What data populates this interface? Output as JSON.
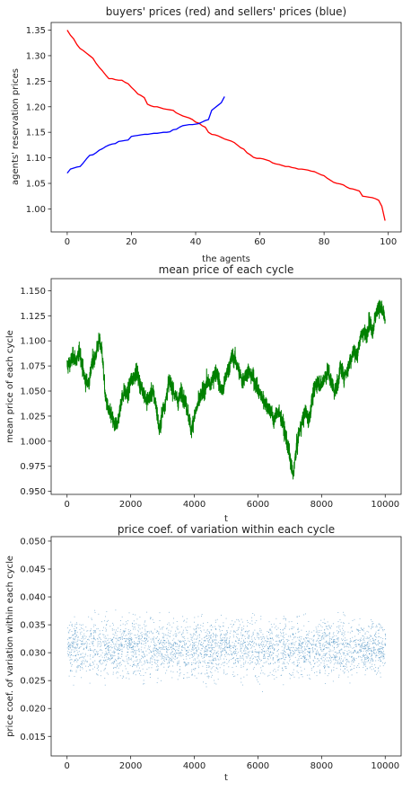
{
  "chart_data": [
    {
      "type": "line",
      "title": "buyers' prices (red) and sellers' prices (blue)",
      "xlabel": "the agents",
      "ylabel": "agents' reservation prices",
      "xlim": [
        -5,
        104
      ],
      "ylim": [
        0.955,
        1.365
      ],
      "xticks": [
        0,
        20,
        40,
        60,
        80,
        100
      ],
      "yticks": [
        1.0,
        1.05,
        1.1,
        1.15,
        1.2,
        1.25,
        1.3,
        1.35
      ],
      "ytick_decimals": 2,
      "grid": false,
      "series": [
        {
          "color": "#ff0000",
          "x": [
            0,
            1,
            2,
            3,
            4,
            5,
            6,
            7,
            8,
            9,
            10,
            11,
            12,
            13,
            14,
            15,
            16,
            17,
            18,
            19,
            20,
            21,
            22,
            23,
            24,
            25,
            26,
            27,
            28,
            29,
            30,
            31,
            32,
            33,
            34,
            35,
            36,
            37,
            38,
            39,
            40,
            41,
            42,
            43,
            44,
            45,
            46,
            47,
            48,
            49,
            50,
            51,
            52,
            53,
            54,
            55,
            56,
            57,
            58,
            59,
            60,
            61,
            62,
            63,
            64,
            65,
            66,
            67,
            68,
            69,
            70,
            71,
            72,
            73,
            74,
            75,
            76,
            77,
            78,
            79,
            80,
            81,
            82,
            83,
            84,
            85,
            86,
            87,
            88,
            89,
            90,
            91,
            92,
            93,
            94,
            95,
            96,
            97,
            98,
            99
          ],
          "values": [
            1.35,
            1.34,
            1.333,
            1.322,
            1.314,
            1.31,
            1.305,
            1.3,
            1.295,
            1.285,
            1.277,
            1.27,
            1.262,
            1.255,
            1.255,
            1.253,
            1.252,
            1.252,
            1.248,
            1.245,
            1.238,
            1.232,
            1.225,
            1.222,
            1.218,
            1.205,
            1.202,
            1.2,
            1.2,
            1.198,
            1.196,
            1.195,
            1.194,
            1.193,
            1.188,
            1.185,
            1.182,
            1.18,
            1.178,
            1.175,
            1.17,
            1.168,
            1.163,
            1.16,
            1.15,
            1.146,
            1.145,
            1.143,
            1.14,
            1.137,
            1.135,
            1.133,
            1.13,
            1.125,
            1.12,
            1.117,
            1.11,
            1.106,
            1.101,
            1.099,
            1.099,
            1.098,
            1.096,
            1.094,
            1.09,
            1.088,
            1.087,
            1.085,
            1.083,
            1.083,
            1.081,
            1.08,
            1.078,
            1.078,
            1.077,
            1.076,
            1.074,
            1.073,
            1.07,
            1.067,
            1.065,
            1.06,
            1.056,
            1.052,
            1.05,
            1.049,
            1.047,
            1.043,
            1.04,
            1.039,
            1.037,
            1.035,
            1.025,
            1.024,
            1.023,
            1.022,
            1.02,
            1.017,
            1.005,
            0.977
          ]
        },
        {
          "color": "#0000ff",
          "x": [
            0,
            1,
            2,
            3,
            4,
            5,
            6,
            7,
            8,
            9,
            10,
            11,
            12,
            13,
            14,
            15,
            16,
            17,
            18,
            19,
            20,
            21,
            22,
            23,
            24,
            25,
            26,
            27,
            28,
            29,
            30,
            31,
            32,
            33,
            34,
            35,
            36,
            37,
            38,
            39,
            40,
            41,
            42,
            43,
            44,
            45,
            46,
            47,
            48,
            49
          ],
          "values": [
            1.07,
            1.078,
            1.08,
            1.082,
            1.083,
            1.09,
            1.098,
            1.105,
            1.106,
            1.11,
            1.115,
            1.118,
            1.122,
            1.125,
            1.127,
            1.128,
            1.132,
            1.133,
            1.134,
            1.135,
            1.142,
            1.143,
            1.144,
            1.145,
            1.146,
            1.146,
            1.147,
            1.148,
            1.148,
            1.149,
            1.15,
            1.15,
            1.151,
            1.155,
            1.156,
            1.16,
            1.163,
            1.164,
            1.165,
            1.165,
            1.166,
            1.167,
            1.17,
            1.173,
            1.175,
            1.193,
            1.198,
            1.203,
            1.208,
            1.22
          ]
        }
      ]
    },
    {
      "type": "line",
      "title": "mean price of each cycle",
      "xlabel": "t",
      "ylabel": "mean price of each cycle",
      "xlim": [
        -500,
        10500
      ],
      "ylim": [
        0.947,
        1.162
      ],
      "xticks": [
        0,
        2000,
        4000,
        6000,
        8000,
        10000
      ],
      "yticks": [
        0.95,
        0.975,
        1.0,
        1.025,
        1.05,
        1.075,
        1.1,
        1.125,
        1.15
      ],
      "ytick_decimals": 3,
      "grid": false,
      "series": [
        {
          "color": "#008000",
          "x": [
            0,
            100,
            200,
            300,
            400,
            500,
            600,
            700,
            800,
            900,
            1000,
            1100,
            1200,
            1300,
            1400,
            1500,
            1600,
            1700,
            1800,
            1900,
            2000,
            2100,
            2200,
            2300,
            2400,
            2500,
            2600,
            2700,
            2800,
            2900,
            3000,
            3100,
            3200,
            3300,
            3400,
            3500,
            3600,
            3700,
            3800,
            3900,
            4000,
            4100,
            4200,
            4300,
            4400,
            4500,
            4600,
            4700,
            4800,
            4900,
            5000,
            5100,
            5200,
            5300,
            5400,
            5500,
            5600,
            5700,
            5800,
            5900,
            6000,
            6100,
            6200,
            6300,
            6400,
            6500,
            6600,
            6700,
            6800,
            6900,
            7000,
            7100,
            7200,
            7300,
            7400,
            7500,
            7600,
            7700,
            7800,
            7900,
            8000,
            8100,
            8200,
            8300,
            8400,
            8500,
            8600,
            8700,
            8800,
            8900,
            9000,
            9100,
            9200,
            9300,
            9400,
            9500,
            9600,
            9700,
            9800,
            9900,
            10000
          ],
          "values": [
            1.075,
            1.078,
            1.085,
            1.08,
            1.09,
            1.07,
            1.058,
            1.06,
            1.08,
            1.085,
            1.1,
            1.09,
            1.045,
            1.03,
            1.025,
            1.015,
            1.02,
            1.04,
            1.05,
            1.045,
            1.06,
            1.065,
            1.07,
            1.055,
            1.05,
            1.04,
            1.045,
            1.05,
            1.035,
            1.01,
            1.03,
            1.04,
            1.06,
            1.055,
            1.045,
            1.04,
            1.05,
            1.04,
            1.03,
            1.01,
            1.025,
            1.035,
            1.045,
            1.05,
            1.06,
            1.055,
            1.065,
            1.07,
            1.055,
            1.05,
            1.065,
            1.075,
            1.085,
            1.08,
            1.07,
            1.06,
            1.065,
            1.07,
            1.065,
            1.06,
            1.05,
            1.045,
            1.04,
            1.035,
            1.03,
            1.02,
            1.03,
            1.025,
            1.015,
            1.0,
            0.985,
            0.965,
            0.99,
            1.01,
            1.02,
            1.03,
            1.02,
            1.04,
            1.055,
            1.06,
            1.055,
            1.065,
            1.07,
            1.06,
            1.05,
            1.055,
            1.075,
            1.065,
            1.07,
            1.08,
            1.09,
            1.085,
            1.1,
            1.11,
            1.105,
            1.12,
            1.11,
            1.125,
            1.135,
            1.13,
            1.12
          ]
        }
      ]
    },
    {
      "type": "scatter",
      "title": "price coef. of variation within each cycle",
      "xlabel": "t",
      "ylabel": "price coef. of variation within each cycle",
      "xlim": [
        -500,
        10500
      ],
      "ylim": [
        0.0115,
        0.0508
      ],
      "xticks": [
        0,
        2000,
        4000,
        6000,
        8000,
        10000
      ],
      "yticks": [
        0.015,
        0.02,
        0.025,
        0.03,
        0.035,
        0.04,
        0.045,
        0.05
      ],
      "ytick_decimals": 3,
      "grid": false,
      "point_color": "#1f77b4",
      "x_range": [
        0,
        10000
      ],
      "center": 0.031,
      "spread": 0.0035,
      "n_points": 3500
    }
  ]
}
